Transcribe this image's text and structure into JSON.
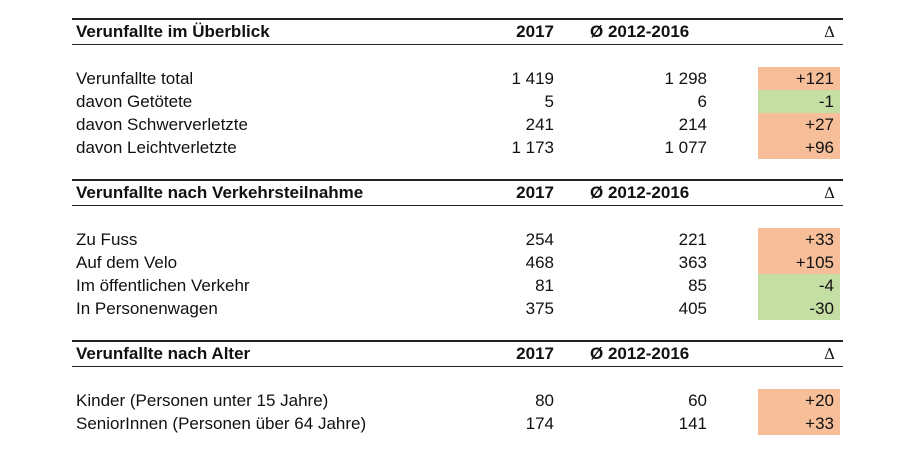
{
  "colors": {
    "positive_delta_bg": "#f7bf99",
    "negative_delta_bg": "#c5dea3",
    "rule": "#222222"
  },
  "sections": [
    {
      "title": "Verunfallte im Überblick",
      "col_2017": "2017",
      "col_avg": "Ø 2012-2016",
      "col_delta": "Δ",
      "rows": [
        {
          "label": "Verunfallte total",
          "v2017": "1 419",
          "avg": "1 298",
          "delta": "+121"
        },
        {
          "label": "davon Getötete",
          "v2017": "5",
          "avg": "6",
          "delta": "-1"
        },
        {
          "label": "davon Schwerverletzte",
          "v2017": "241",
          "avg": "214",
          "delta": "+27"
        },
        {
          "label": "davon Leichtverletzte",
          "v2017": "1 173",
          "avg": "1 077",
          "delta": "+96"
        }
      ]
    },
    {
      "title": "Verunfallte nach Verkehrsteilnahme",
      "col_2017": "2017",
      "col_avg": "Ø 2012-2016",
      "col_delta": "Δ",
      "rows": [
        {
          "label": "Zu Fuss",
          "v2017": "254",
          "avg": "221",
          "delta": "+33"
        },
        {
          "label": "Auf dem Velo",
          "v2017": "468",
          "avg": "363",
          "delta": "+105"
        },
        {
          "label": "Im öffentlichen Verkehr",
          "v2017": "81",
          "avg": "85",
          "delta": "-4"
        },
        {
          "label": "In Personenwagen",
          "v2017": "375",
          "avg": "405",
          "delta": "-30"
        }
      ]
    },
    {
      "title": "Verunfallte nach Alter",
      "col_2017": "2017",
      "col_avg": "Ø 2012-2016",
      "col_delta": "Δ",
      "rows": [
        {
          "label": "Kinder (Personen unter 15 Jahre)",
          "v2017": "80",
          "avg": "60",
          "delta": "+20"
        },
        {
          "label": "SeniorInnen (Personen über 64 Jahre)",
          "v2017": "174",
          "avg": "141",
          "delta": "+33"
        }
      ]
    }
  ]
}
